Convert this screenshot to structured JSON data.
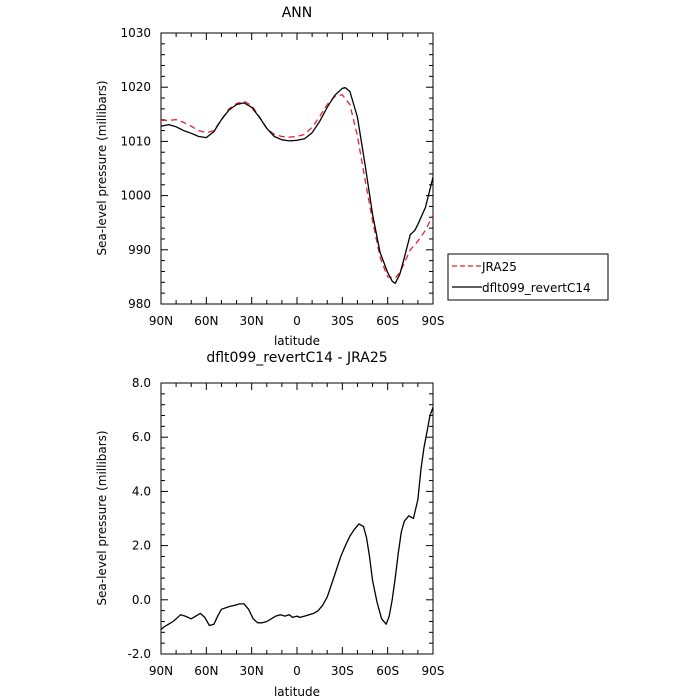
{
  "chart_data": [
    {
      "type": "line",
      "title": "ANN",
      "xlabel": "latitude",
      "ylabel": "Sea-level pressure (millibars)",
      "xlim": [
        90,
        -90
      ],
      "ylim": [
        980,
        1030
      ],
      "xticks": [
        90,
        60,
        30,
        0,
        -30,
        -60,
        -90
      ],
      "xtick_labels": [
        "90N",
        "60N",
        "30N",
        "0",
        "30S",
        "60S",
        "90S"
      ],
      "yticks": [
        980,
        990,
        1000,
        1010,
        1020,
        1030
      ],
      "ytick_labels": [
        "980",
        "990",
        "1000",
        "1010",
        "1020",
        "1030"
      ],
      "legend_position": "right",
      "series": [
        {
          "name": "JRA25",
          "color": "#e8212a",
          "style": "dashed",
          "x": [
            90,
            85,
            80,
            75,
            70,
            65,
            60,
            55,
            50,
            45,
            40,
            35,
            30,
            25,
            20,
            15,
            10,
            5,
            0,
            -5,
            -10,
            -15,
            -20,
            -25,
            -30,
            -35,
            -40,
            -45,
            -50,
            -55,
            -60,
            -65,
            -68,
            -70,
            -75,
            -80,
            -85,
            -90
          ],
          "y": [
            1013.9,
            1013.9,
            1014.0,
            1013.5,
            1012.8,
            1012.0,
            1011.6,
            1012.0,
            1014.0,
            1016.0,
            1017.0,
            1017.4,
            1016.6,
            1014.6,
            1012.4,
            1011.3,
            1010.9,
            1010.8,
            1010.9,
            1011.3,
            1012.6,
            1014.6,
            1016.8,
            1018.3,
            1018.6,
            1016.8,
            1011.0,
            1003.0,
            995.3,
            988.6,
            985.0,
            984.8,
            985.8,
            987.0,
            990.0,
            991.6,
            993.6,
            996.4
          ]
        },
        {
          "name": "dflt099_revertC14",
          "color": "#000000",
          "style": "solid",
          "x": [
            90,
            85,
            80,
            75,
            70,
            65,
            60,
            55,
            50,
            45,
            40,
            35,
            30,
            25,
            20,
            15,
            10,
            5,
            0,
            -5,
            -10,
            -15,
            -20,
            -25,
            -30,
            -32,
            -35,
            -40,
            -45,
            -50,
            -55,
            -60,
            -63,
            -65,
            -68,
            -70,
            -75,
            -78,
            -80,
            -85,
            -90
          ],
          "y": [
            1012.8,
            1013.1,
            1012.7,
            1012.0,
            1011.5,
            1010.9,
            1010.7,
            1011.8,
            1014.0,
            1015.8,
            1016.8,
            1017.1,
            1016.3,
            1014.5,
            1012.4,
            1010.9,
            1010.3,
            1010.1,
            1010.2,
            1010.5,
            1011.6,
            1013.7,
            1016.3,
            1018.5,
            1019.8,
            1019.9,
            1019.2,
            1014.5,
            1005.8,
            996.5,
            989.5,
            985.8,
            984.2,
            983.8,
            985.5,
            987.5,
            992.8,
            993.6,
            994.7,
            997.8,
            1003.4
          ]
        }
      ]
    },
    {
      "type": "line",
      "title": "dflt099_revertC14 - JRA25",
      "xlabel": "latitude",
      "ylabel": "Sea-level pressure (millibars)",
      "xlim": [
        90,
        -90
      ],
      "ylim": [
        -2.0,
        8.0
      ],
      "xticks": [
        90,
        60,
        30,
        0,
        -30,
        -60,
        -90
      ],
      "xtick_labels": [
        "90N",
        "60N",
        "30N",
        "0",
        "30S",
        "60S",
        "90S"
      ],
      "yticks": [
        -2,
        0,
        2,
        4,
        6,
        8
      ],
      "ytick_labels": [
        "-2.0",
        "0.0",
        "2.0",
        "4.0",
        "6.0",
        "8.0"
      ],
      "series": [
        {
          "color": "#000000",
          "style": "solid",
          "x": [
            90,
            88,
            85,
            82,
            80,
            77,
            74,
            70,
            67,
            64,
            61,
            58,
            55,
            52,
            50,
            45,
            41,
            38,
            35,
            32,
            29,
            26,
            23,
            20,
            17,
            14,
            11,
            8,
            5,
            3,
            0,
            -2,
            -5,
            -8,
            -11,
            -14,
            -17,
            -20,
            -23,
            -26,
            -29,
            -32,
            -35,
            -38,
            -41,
            -44,
            -46,
            -48,
            -50,
            -53,
            -56,
            -59,
            -61,
            -63,
            -65,
            -67,
            -69,
            -71,
            -74,
            -77,
            -80,
            -82,
            -84,
            -86,
            -88,
            -90
          ],
          "y": [
            -1.1,
            -1.0,
            -0.9,
            -0.8,
            -0.7,
            -0.55,
            -0.6,
            -0.7,
            -0.6,
            -0.5,
            -0.65,
            -0.95,
            -0.9,
            -0.55,
            -0.35,
            -0.25,
            -0.2,
            -0.15,
            -0.15,
            -0.35,
            -0.7,
            -0.85,
            -0.85,
            -0.8,
            -0.7,
            -0.6,
            -0.55,
            -0.6,
            -0.55,
            -0.65,
            -0.6,
            -0.65,
            -0.6,
            -0.55,
            -0.5,
            -0.4,
            -0.2,
            0.1,
            0.6,
            1.1,
            1.6,
            2.0,
            2.35,
            2.6,
            2.8,
            2.7,
            2.3,
            1.6,
            0.7,
            -0.1,
            -0.7,
            -0.9,
            -0.6,
            0.0,
            0.8,
            1.7,
            2.5,
            2.9,
            3.1,
            3.0,
            3.7,
            4.8,
            5.6,
            6.2,
            6.8,
            7.1
          ]
        }
      ]
    }
  ]
}
